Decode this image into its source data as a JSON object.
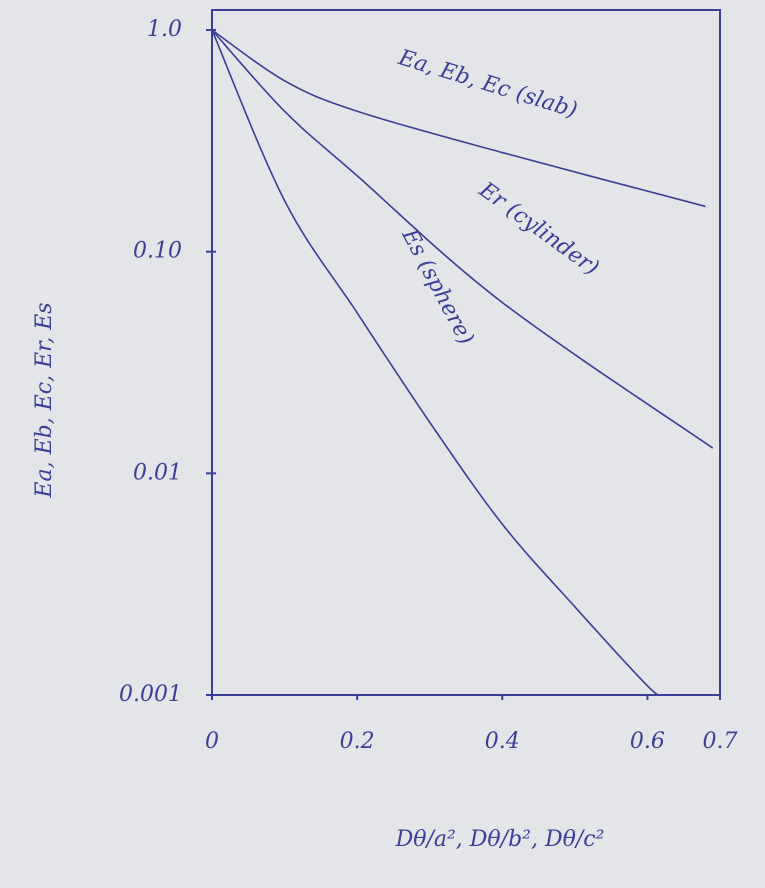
{
  "chart_data": {
    "type": "line",
    "xlabel": "Dθ/a², Dθ/b², Dθ/c²",
    "ylabel": "Ea, Eb, Ec, Er, Es",
    "xlim": [
      0,
      0.7
    ],
    "xticks": [
      0,
      0.2,
      0.4,
      0.6,
      0.7
    ],
    "ylim": [
      0.001,
      1
    ],
    "yticks": [
      {
        "value": 1,
        "label": "1.0"
      },
      {
        "value": 0.1,
        "label": "0.10"
      },
      0.01,
      0.001
    ],
    "log_y": true,
    "grid": false,
    "color": "#3b3f95",
    "series": [
      {
        "name": "Ea, Eb, Ec (slab)",
        "color": "#3b3f95",
        "x": [
          0,
          0.1,
          0.2,
          0.4,
          0.68
        ],
        "values": [
          1,
          0.59,
          0.43,
          0.28,
          0.16
        ]
      },
      {
        "name": "Er (cylinder)",
        "color": "#3b3f95",
        "x": [
          0,
          0.1,
          0.2,
          0.4,
          0.69
        ],
        "values": [
          1,
          0.43,
          0.22,
          0.059,
          0.013
        ]
      },
      {
        "name": "Es (sphere)",
        "color": "#3b3f95",
        "x": [
          0,
          0.1,
          0.2,
          0.3,
          0.4,
          0.5,
          0.6,
          0.62
        ],
        "values": [
          1,
          0.17,
          0.053,
          0.017,
          0.0059,
          0.0025,
          0.0011,
          0.001
        ]
      }
    ]
  }
}
